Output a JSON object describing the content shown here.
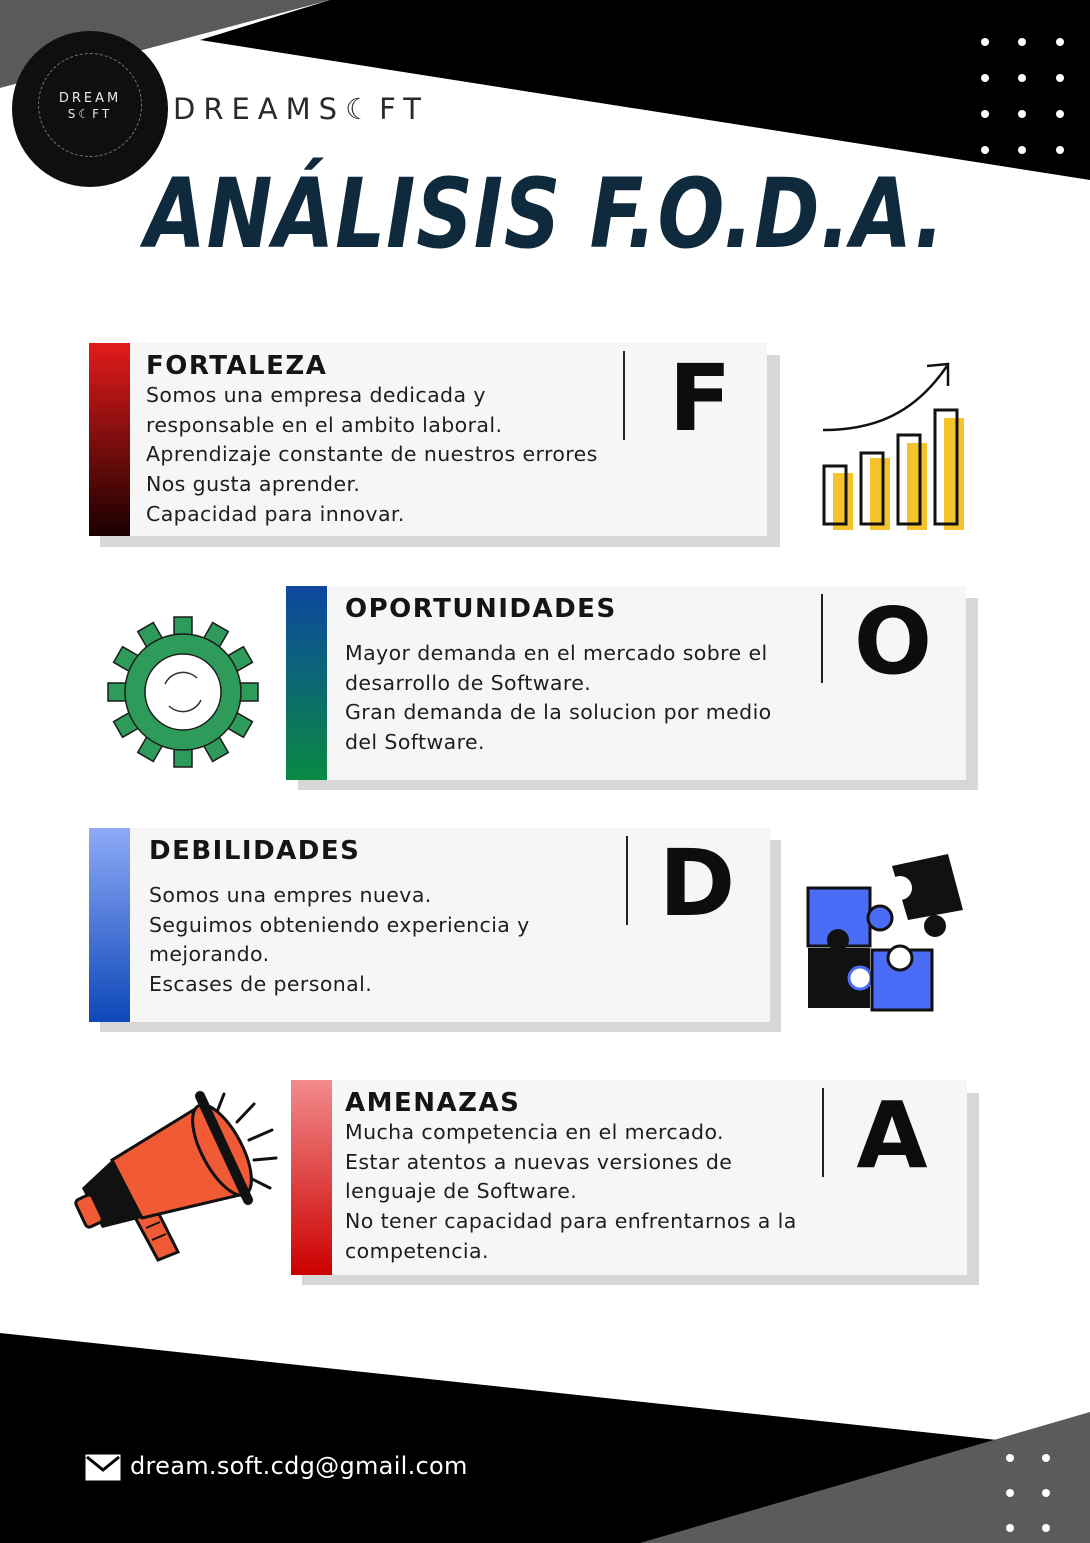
{
  "brand": {
    "name": "DREAMS☾FT",
    "logo_top": "DREAM",
    "logo_bottom": "S☾FT"
  },
  "title": "ANÁLISIS F.O.D.A.",
  "sections": [
    {
      "key": "fortaleza",
      "title": "FORTALEZA",
      "letter": "F",
      "lines": [
        "Somos una empresa dedicada y",
        "responsable en el ambito laboral.",
        "Aprendizaje constante de nuestros errores",
        "Nos gusta aprender.",
        "Capacidad para innovar."
      ],
      "gradient": [
        "#e31b1b",
        "#1a0000"
      ],
      "icon": "bar-chart-growth-icon"
    },
    {
      "key": "oportunidades",
      "title": "OPORTUNIDADES",
      "letter": "O",
      "lines": [
        "Mayor demanda en el mercado sobre el",
        "desarrollo de Software.",
        "Gran demanda de la solucion por medio",
        "del Software."
      ],
      "gradient": [
        "#0d47a1",
        "#0a8a43"
      ],
      "icon": "gear-icon"
    },
    {
      "key": "debilidades",
      "title": "DEBILIDADES",
      "letter": "D",
      "lines": [
        "Somos una empres nueva.",
        "Seguimos obteniendo experiencia y",
        "mejorando.",
        "Escases de personal."
      ],
      "gradient": [
        "#8eaaf7",
        "#0d47b8"
      ],
      "icon": "puzzle-pieces-icon"
    },
    {
      "key": "amenazas",
      "title": "AMENAZAS",
      "letter": "A",
      "lines": [
        "Mucha competencia en el mercado.",
        "Estar atentos a nuevas versiones de",
        "lenguaje de Software.",
        "No tener capacidad para enfrentarnos a la",
        "competencia."
      ],
      "gradient": [
        "#f28b8b",
        "#cc0000"
      ],
      "icon": "megaphone-icon"
    }
  ],
  "footer": {
    "email": "dream.soft.cdg@gmail.com",
    "icon": "mail-icon"
  },
  "colors": {
    "title": "#0f2a3c",
    "black": "#000000",
    "gray": "#555555",
    "chart_yellow": "#f5c32c",
    "gear_green": "#2e9b5b",
    "puzzle_blue": "#4a6cf7",
    "megaphone_orange": "#f05a35"
  }
}
